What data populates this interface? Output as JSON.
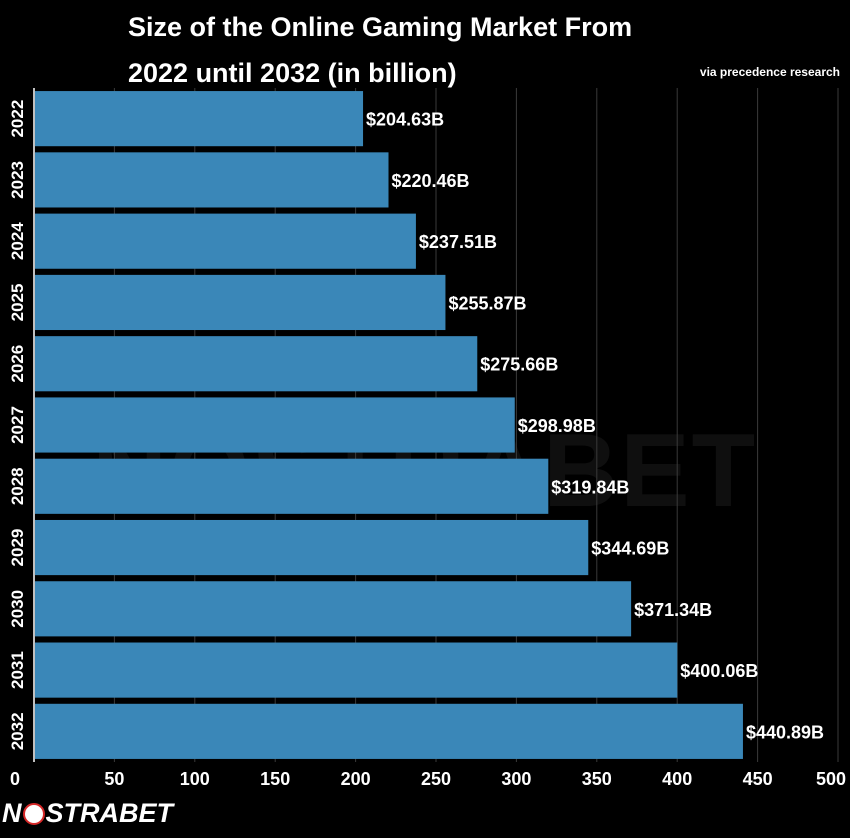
{
  "chart_data": {
    "type": "bar",
    "orientation": "horizontal",
    "title_line1": "Size of the Online Gaming Market From",
    "title_line2": "2022 until 2032 (in billion)",
    "source_note": "via precedence research",
    "categories": [
      "2022",
      "2023",
      "2024",
      "2025",
      "2026",
      "2027",
      "2028",
      "2029",
      "2030",
      "2031",
      "2032"
    ],
    "values": [
      204.63,
      220.46,
      237.51,
      255.87,
      275.66,
      298.98,
      319.84,
      344.69,
      371.34,
      400.06,
      440.89
    ],
    "value_labels": [
      "$204.63B",
      "$220.46B",
      "$237.51B",
      "$255.87B",
      "$275.66B",
      "$298.98B",
      "$319.84B",
      "$344.69B",
      "$371.34B",
      "$400.06B",
      "$440.89B"
    ],
    "x_ticks": [
      0,
      50,
      100,
      150,
      200,
      250,
      300,
      350,
      400,
      450,
      500
    ],
    "xlim": [
      0,
      500
    ],
    "grid": "vertical",
    "bar_color": "#3a87b8",
    "background_color": "#000000",
    "text_color": "#ffffff",
    "grid_color": "#3a3a3a"
  },
  "brand": {
    "logo_text_left": "N",
    "logo_text_right": "STRABET",
    "watermark": "NOSTRABET",
    "accent_color": "#d62828"
  }
}
